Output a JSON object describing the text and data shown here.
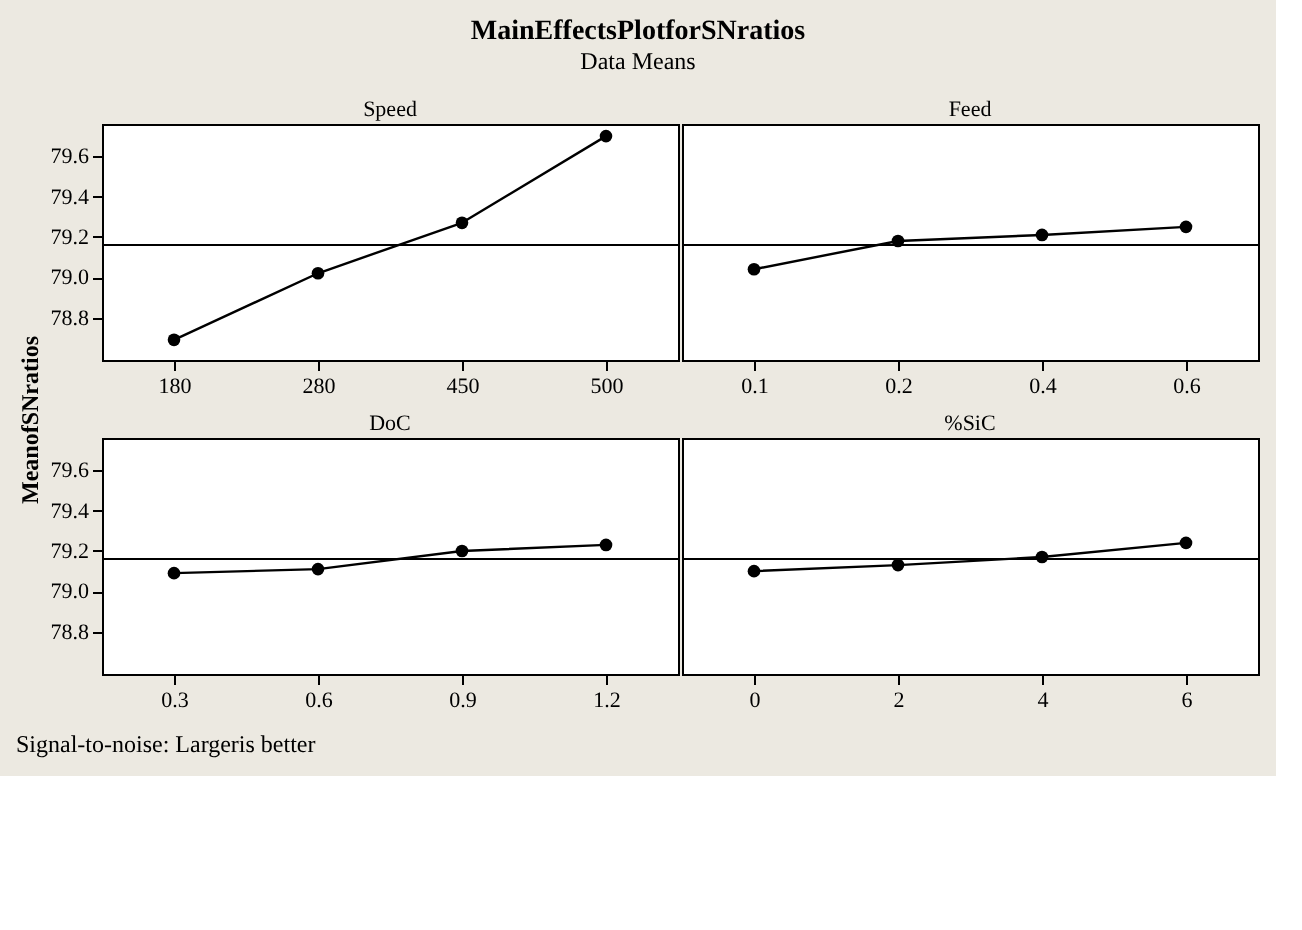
{
  "chart_data": [
    {
      "type": "line",
      "title": "MainEffectsPlotforSNratios",
      "subtitle": "Data Means",
      "ylabel": "MeanofSNratios",
      "xlabel": "Speed",
      "categories": [
        "180",
        "280",
        "450",
        "500"
      ],
      "series": [
        {
          "color": "#000000",
          "values": [
            78.69,
            79.02,
            79.27,
            79.7
          ]
        }
      ],
      "ylim": [
        78.59,
        79.76
      ],
      "yticks": [
        {
          "value": 78.8,
          "label": "78.8"
        },
        {
          "value": 79.0,
          "label": "79.0"
        },
        {
          "value": 79.2,
          "label": "79.2"
        },
        {
          "value": 79.4,
          "label": "79.4"
        },
        {
          "value": 79.6,
          "label": "79.6"
        }
      ],
      "ref_lines": [
        {
          "axis": "y",
          "value": 79.16,
          "color": "#000000"
        }
      ],
      "marker": "circle",
      "line_style": "solid",
      "grid": false
    },
    {
      "type": "line",
      "xlabel": "Feed",
      "categories": [
        "0.1",
        "0.2",
        "0.4",
        "0.6"
      ],
      "series": [
        {
          "color": "#000000",
          "values": [
            79.04,
            79.18,
            79.21,
            79.25
          ]
        }
      ],
      "ylim": [
        78.59,
        79.76
      ],
      "tick_labels": "x",
      "ref_lines": [
        {
          "axis": "y",
          "value": 79.16,
          "color": "#000000"
        }
      ],
      "marker": "circle",
      "line_style": "solid",
      "grid": false
    },
    {
      "type": "line",
      "xlabel": "DoC",
      "categories": [
        "0.3",
        "0.6",
        "0.9",
        "1.2"
      ],
      "series": [
        {
          "color": "#000000",
          "values": [
            79.09,
            79.11,
            79.2,
            79.23
          ]
        }
      ],
      "ylim": [
        78.59,
        79.76
      ],
      "yticks": [
        {
          "value": 78.8,
          "label": "78.8"
        },
        {
          "value": 79.0,
          "label": "79.0"
        },
        {
          "value": 79.2,
          "label": "79.2"
        },
        {
          "value": 79.4,
          "label": "79.4"
        },
        {
          "value": 79.6,
          "label": "79.6"
        }
      ],
      "ref_lines": [
        {
          "axis": "y",
          "value": 79.16,
          "color": "#000000"
        }
      ],
      "marker": "circle",
      "line_style": "solid",
      "grid": false
    },
    {
      "type": "line",
      "xlabel": "%SiC",
      "categories": [
        "0",
        "2",
        "4",
        "6"
      ],
      "series": [
        {
          "color": "#000000",
          "values": [
            79.1,
            79.13,
            79.17,
            79.24
          ]
        }
      ],
      "ylim": [
        78.59,
        79.76
      ],
      "tick_labels": "x",
      "ref_lines": [
        {
          "axis": "y",
          "value": 79.16,
          "color": "#000000"
        }
      ],
      "marker": "circle",
      "line_style": "solid",
      "grid": false,
      "annotations": [
        "Signal-to-noise: Largeris better"
      ]
    }
  ]
}
